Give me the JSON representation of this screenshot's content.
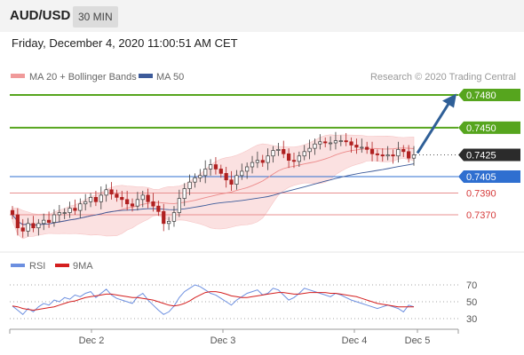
{
  "header": {
    "pair": "AUD/USD",
    "timeframe": "30 MIN"
  },
  "timestamp": "Friday, December 4, 2020 11:00:51 AM CET",
  "legend": {
    "ma20": "MA 20 + Bollinger Bands",
    "ma50": "MA 50",
    "copyright": "Research © 2020 Trading Central"
  },
  "rsi_legend": {
    "rsi": "RSI",
    "ma9": "9MA"
  },
  "colors": {
    "resistance": "#56a51e",
    "support_blue": "#2f6fd0",
    "support_red": "#d63b3b",
    "current": "#2b2b2b",
    "arrow": "#2f5f97",
    "candle_up": "#3a3a3a",
    "candle_down": "#b02020",
    "bollinger_fill": "#fbe1e1",
    "ma50": "#3d5b9a",
    "rsi_line": "#6c8fe0",
    "rsi_ma": "#d41f1f"
  },
  "chart_data": {
    "type": "candlestick",
    "ylim": [
      0.7345,
      0.749
    ],
    "levels": [
      {
        "value": 0.748,
        "label": "0.7480",
        "kind": "resistance"
      },
      {
        "value": 0.745,
        "label": "0.7450",
        "kind": "resistance"
      },
      {
        "value": 0.7425,
        "label": "0.7425",
        "kind": "current"
      },
      {
        "value": 0.7405,
        "label": "0.7405",
        "kind": "support_blue"
      },
      {
        "value": 0.739,
        "label": "0.7390",
        "kind": "support_red"
      },
      {
        "value": 0.737,
        "label": "0.7370",
        "kind": "support_red"
      }
    ],
    "x_ticks": [
      "Dec 2",
      "Dec 3",
      "Dec 4",
      "Dec 5"
    ],
    "rsi_ticks": [
      70,
      50,
      30
    ],
    "close": [
      0.737,
      0.7358,
      0.7355,
      0.7362,
      0.7358,
      0.7362,
      0.7365,
      0.7363,
      0.737,
      0.7372,
      0.7372,
      0.7376,
      0.7374,
      0.738,
      0.7382,
      0.7386,
      0.7382,
      0.7388,
      0.7393,
      0.7389,
      0.7386,
      0.7384,
      0.738,
      0.7378,
      0.7384,
      0.7388,
      0.7382,
      0.7378,
      0.7373,
      0.7362,
      0.7364,
      0.7372,
      0.7385,
      0.7394,
      0.74,
      0.7404,
      0.7406,
      0.7412,
      0.7416,
      0.7412,
      0.7408,
      0.7402,
      0.7398,
      0.7406,
      0.741,
      0.7414,
      0.7418,
      0.742,
      0.7418,
      0.7424,
      0.7429,
      0.743,
      0.7426,
      0.742,
      0.7419,
      0.7424,
      0.7428,
      0.7431,
      0.7435,
      0.7437,
      0.7436,
      0.7436,
      0.7438,
      0.7438,
      0.7437,
      0.7434,
      0.7432,
      0.7432,
      0.743,
      0.7426,
      0.7425,
      0.7424,
      0.7425,
      0.7424,
      0.743,
      0.7428,
      0.7422,
      0.7425
    ],
    "rsi": [
      45,
      40,
      35,
      42,
      38,
      44,
      48,
      46,
      52,
      50,
      55,
      53,
      58,
      56,
      60,
      62,
      55,
      60,
      65,
      58,
      54,
      52,
      50,
      48,
      56,
      60,
      52,
      46,
      40,
      35,
      38,
      45,
      55,
      62,
      66,
      70,
      68,
      64,
      60,
      58,
      54,
      50,
      46,
      52,
      56,
      60,
      62,
      64,
      58,
      60,
      66,
      64,
      58,
      52,
      55,
      60,
      66,
      64,
      62,
      60,
      58,
      56,
      60,
      58,
      55,
      52,
      50,
      48,
      46,
      44,
      42,
      44,
      46,
      44,
      42,
      38,
      46,
      44
    ],
    "rsi_ma9": [
      45,
      44,
      42,
      41,
      40,
      41,
      42,
      43,
      44,
      46,
      48,
      50,
      51,
      53,
      55,
      56,
      57,
      58,
      59,
      59,
      58,
      57,
      56,
      55,
      55,
      54,
      53,
      52,
      50,
      48,
      46,
      45,
      46,
      48,
      51,
      55,
      58,
      61,
      62,
      62,
      61,
      59,
      57,
      56,
      55,
      55,
      56,
      57,
      58,
      59,
      60,
      61,
      61,
      60,
      59,
      59,
      60,
      61,
      61,
      61,
      61,
      60,
      60,
      59,
      58,
      57,
      56,
      54,
      52,
      50,
      48,
      47,
      46,
      45,
      44,
      44,
      44,
      44
    ]
  }
}
